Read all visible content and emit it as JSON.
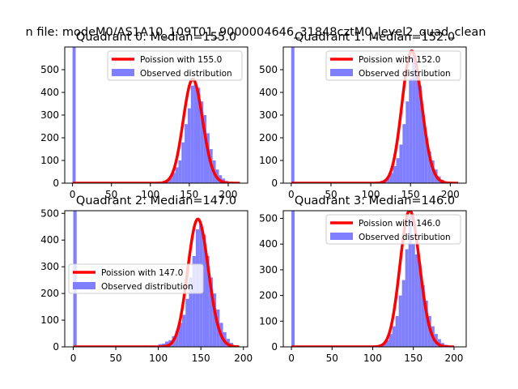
{
  "figure": {
    "suptitle": "n file: modeM0/AS1A10_109T01_9000004646_31848cztM0_level2_quad_clean"
  },
  "colors": {
    "bar": "#7f7fff",
    "curve": "#ff0000",
    "spine": "#000000"
  },
  "chart_data": [
    {
      "type": "bar",
      "title": "Quadrant 0: Median=155.0",
      "median": 155.0,
      "xlim": [
        -10,
        225
      ],
      "ylim": [
        0,
        600
      ],
      "xticks": [
        0,
        50,
        100,
        150,
        200
      ],
      "yticks": [
        0,
        100,
        200,
        300,
        400,
        500
      ],
      "bin_width": 4,
      "legend": {
        "location": "upper right",
        "entries": [
          "Poission with 155.0",
          "Observed distribution"
        ]
      },
      "hist": [
        [
          0,
          600
        ],
        [
          104,
          2
        ],
        [
          108,
          3
        ],
        [
          112,
          5
        ],
        [
          116,
          10
        ],
        [
          120,
          15
        ],
        [
          124,
          25
        ],
        [
          128,
          45
        ],
        [
          132,
          70
        ],
        [
          136,
          100
        ],
        [
          140,
          180
        ],
        [
          144,
          260
        ],
        [
          148,
          330
        ],
        [
          152,
          430
        ],
        [
          156,
          440
        ],
        [
          160,
          420
        ],
        [
          164,
          360
        ],
        [
          168,
          300
        ],
        [
          172,
          220
        ],
        [
          176,
          150
        ],
        [
          180,
          100
        ],
        [
          184,
          60
        ],
        [
          188,
          35
        ],
        [
          192,
          20
        ],
        [
          196,
          10
        ],
        [
          200,
          5
        ],
        [
          204,
          3
        ]
      ],
      "poisson": {
        "lambda": 155.0,
        "x_range": [
          0,
          215
        ]
      }
    },
    {
      "type": "bar",
      "title": "Quadrant 1: Median=152.0",
      "median": 152.0,
      "xlim": [
        -10,
        220
      ],
      "ylim": [
        0,
        600
      ],
      "xticks": [
        0,
        50,
        100,
        150,
        200
      ],
      "yticks": [
        0,
        100,
        200,
        300,
        400,
        500
      ],
      "bin_width": 4,
      "legend": {
        "location": "upper right",
        "entries": [
          "Poission with 152.0",
          "Observed distribution"
        ]
      },
      "hist": [
        [
          0,
          600
        ],
        [
          108,
          5
        ],
        [
          112,
          10
        ],
        [
          116,
          15
        ],
        [
          120,
          30
        ],
        [
          124,
          45
        ],
        [
          128,
          75
        ],
        [
          132,
          110
        ],
        [
          136,
          170
        ],
        [
          140,
          260
        ],
        [
          144,
          360
        ],
        [
          148,
          460
        ],
        [
          152,
          560
        ],
        [
          156,
          470
        ],
        [
          160,
          430
        ],
        [
          164,
          300
        ],
        [
          168,
          200
        ],
        [
          172,
          140
        ],
        [
          176,
          100
        ],
        [
          180,
          60
        ],
        [
          184,
          30
        ],
        [
          188,
          15
        ],
        [
          192,
          8
        ],
        [
          196,
          4
        ]
      ],
      "poisson": {
        "lambda": 152.0,
        "x_range": [
          0,
          210
        ]
      }
    },
    {
      "type": "bar",
      "title": "Quadrant 2: Median=147.0",
      "median": 147.0,
      "xlim": [
        -10,
        205
      ],
      "ylim": [
        0,
        510
      ],
      "xticks": [
        0,
        50,
        100,
        150,
        200
      ],
      "yticks": [
        0,
        100,
        200,
        300,
        400,
        500
      ],
      "bin_width": 4,
      "legend": {
        "location": "center left",
        "entries": [
          "Poission with 147.0",
          "Observed distribution"
        ]
      },
      "hist": [
        [
          0,
          510
        ],
        [
          20,
          3
        ],
        [
          32,
          2
        ],
        [
          48,
          2
        ],
        [
          60,
          3
        ],
        [
          84,
          5
        ],
        [
          100,
          10
        ],
        [
          104,
          12
        ],
        [
          108,
          20
        ],
        [
          112,
          25
        ],
        [
          116,
          40
        ],
        [
          120,
          60
        ],
        [
          124,
          90
        ],
        [
          128,
          120
        ],
        [
          132,
          180
        ],
        [
          136,
          260
        ],
        [
          140,
          340
        ],
        [
          144,
          440
        ],
        [
          148,
          460
        ],
        [
          152,
          420
        ],
        [
          156,
          340
        ],
        [
          160,
          260
        ],
        [
          164,
          200
        ],
        [
          168,
          140
        ],
        [
          172,
          90
        ],
        [
          176,
          55
        ],
        [
          180,
          30
        ],
        [
          184,
          15
        ],
        [
          188,
          5
        ]
      ],
      "poisson": {
        "lambda": 147.0,
        "x_range": [
          0,
          195
        ]
      }
    },
    {
      "type": "bar",
      "title": "Quadrant 3: Median=146.0",
      "median": 146.0,
      "xlim": [
        -10,
        215
      ],
      "ylim": [
        0,
        530
      ],
      "xticks": [
        0,
        50,
        100,
        150,
        200
      ],
      "yticks": [
        0,
        100,
        200,
        300,
        400,
        500
      ],
      "bin_width": 4,
      "legend": {
        "location": "upper right",
        "entries": [
          "Poission with 146.0",
          "Observed distribution"
        ]
      },
      "hist": [
        [
          0,
          530
        ],
        [
          100,
          3
        ],
        [
          104,
          5
        ],
        [
          108,
          10
        ],
        [
          112,
          15
        ],
        [
          116,
          25
        ],
        [
          120,
          50
        ],
        [
          124,
          80
        ],
        [
          128,
          120
        ],
        [
          132,
          200
        ],
        [
          136,
          260
        ],
        [
          140,
          380
        ],
        [
          144,
          510
        ],
        [
          148,
          400
        ],
        [
          152,
          360
        ],
        [
          156,
          320
        ],
        [
          160,
          240
        ],
        [
          164,
          180
        ],
        [
          168,
          120
        ],
        [
          172,
          80
        ],
        [
          176,
          50
        ],
        [
          180,
          30
        ],
        [
          184,
          15
        ],
        [
          188,
          8
        ],
        [
          192,
          4
        ],
        [
          196,
          2
        ]
      ],
      "poisson": {
        "lambda": 146.0,
        "x_range": [
          0,
          200
        ]
      }
    }
  ]
}
